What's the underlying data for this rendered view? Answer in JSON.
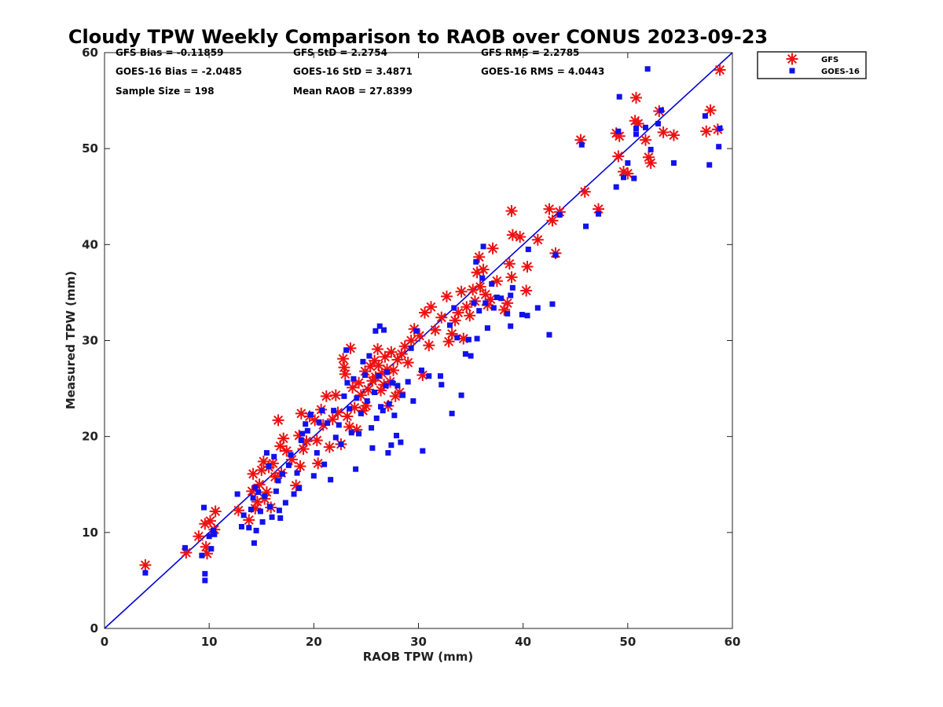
{
  "chart_data": {
    "type": "scatter",
    "title": "Cloudy TPW Weekly Comparison to RAOB over CONUS 2023-09-23",
    "xlabel": "RAOB TPW (mm)",
    "ylabel": "Measured TPW (mm)",
    "xlim": [
      0,
      60
    ],
    "ylim": [
      0,
      60
    ],
    "xticks": [
      "0",
      "10",
      "20",
      "30",
      "40",
      "50",
      "60"
    ],
    "yticks": [
      "0",
      "10",
      "20",
      "30",
      "40",
      "50",
      "60"
    ],
    "grid": false,
    "legend_position": "outside-top-right",
    "reference_line": {
      "x": [
        0,
        60
      ],
      "y": [
        0,
        60
      ],
      "color": "#0000e0"
    },
    "stats": [
      [
        "GFS Bias = -0.11859",
        "GFS StD = 2.2754",
        "GFS RMS = 2.2785"
      ],
      [
        "GOES-16 Bias = -2.0485",
        "GOES-16 StD = 3.4871",
        "GOES-16 RMS = 4.0443"
      ],
      [
        "Sample Size = 198",
        "Mean RAOB = 27.8399",
        ""
      ]
    ],
    "series": [
      {
        "name": "GFS",
        "marker": "asterisk",
        "color": "#ee1111",
        "points": [
          [
            3.9,
            6.6
          ],
          [
            7.8,
            7.9
          ],
          [
            9.0,
            9.6
          ],
          [
            9.6,
            10.9
          ],
          [
            9.7,
            8.5
          ],
          [
            9.8,
            7.8
          ],
          [
            10.1,
            11.2
          ],
          [
            10.5,
            10.3
          ],
          [
            10.6,
            12.2
          ],
          [
            12.8,
            12.3
          ],
          [
            13.8,
            11.3
          ],
          [
            14.1,
            14.3
          ],
          [
            14.2,
            16.1
          ],
          [
            14.4,
            12.5
          ],
          [
            14.6,
            13.2
          ],
          [
            14.8,
            15.0
          ],
          [
            15.0,
            16.5
          ],
          [
            15.2,
            17.4
          ],
          [
            15.3,
            13.5
          ],
          [
            15.5,
            14.2
          ],
          [
            15.7,
            16.8
          ],
          [
            15.9,
            12.6
          ],
          [
            16.1,
            17.2
          ],
          [
            16.3,
            15.8
          ],
          [
            16.6,
            21.7
          ],
          [
            16.8,
            19.0
          ],
          [
            16.9,
            16.2
          ],
          [
            17.1,
            19.8
          ],
          [
            17.4,
            18.5
          ],
          [
            17.9,
            17.6
          ],
          [
            18.3,
            14.9
          ],
          [
            18.6,
            20.1
          ],
          [
            18.7,
            16.9
          ],
          [
            18.8,
            22.4
          ],
          [
            19.0,
            18.7
          ],
          [
            19.3,
            19.5
          ],
          [
            19.6,
            22.1
          ],
          [
            20.1,
            21.7
          ],
          [
            20.3,
            19.6
          ],
          [
            20.4,
            17.2
          ],
          [
            20.7,
            22.8
          ],
          [
            20.9,
            21.2
          ],
          [
            21.2,
            24.2
          ],
          [
            21.5,
            18.9
          ],
          [
            21.8,
            21.8
          ],
          [
            22.1,
            24.3
          ],
          [
            22.3,
            22.5
          ],
          [
            22.6,
            19.2
          ],
          [
            22.8,
            28.1
          ],
          [
            22.9,
            27.2
          ],
          [
            23.0,
            26.5
          ],
          [
            23.2,
            22.1
          ],
          [
            23.4,
            21.0
          ],
          [
            23.5,
            29.2
          ],
          [
            23.7,
            25.1
          ],
          [
            23.9,
            23.0
          ],
          [
            24.1,
            20.7
          ],
          [
            24.3,
            25.6
          ],
          [
            24.5,
            24.3
          ],
          [
            24.7,
            22.7
          ],
          [
            24.9,
            26.8
          ],
          [
            25.0,
            23.2
          ],
          [
            25.2,
            24.9
          ],
          [
            25.4,
            27.3
          ],
          [
            25.6,
            25.8
          ],
          [
            25.8,
            27.9
          ],
          [
            25.9,
            26.2
          ],
          [
            26.1,
            29.1
          ],
          [
            26.2,
            27.4
          ],
          [
            26.4,
            24.8
          ],
          [
            26.5,
            26.6
          ],
          [
            26.7,
            25.4
          ],
          [
            26.8,
            28.3
          ],
          [
            27.0,
            27.0
          ],
          [
            27.1,
            23.2
          ],
          [
            27.3,
            25.7
          ],
          [
            27.4,
            28.8
          ],
          [
            27.6,
            26.9
          ],
          [
            27.8,
            24.2
          ],
          [
            28.0,
            28.0
          ],
          [
            28.2,
            24.6
          ],
          [
            28.4,
            28.6
          ],
          [
            28.7,
            29.4
          ],
          [
            29.0,
            27.7
          ],
          [
            29.3,
            30.0
          ],
          [
            29.6,
            31.2
          ],
          [
            30.1,
            30.5
          ],
          [
            30.4,
            26.4
          ],
          [
            30.6,
            32.9
          ],
          [
            31.0,
            29.5
          ],
          [
            31.2,
            33.5
          ],
          [
            31.6,
            31.1
          ],
          [
            32.2,
            32.4
          ],
          [
            32.7,
            34.6
          ],
          [
            32.9,
            29.9
          ],
          [
            33.2,
            30.7
          ],
          [
            33.5,
            32.1
          ],
          [
            33.8,
            32.9
          ],
          [
            34.1,
            35.1
          ],
          [
            34.3,
            30.2
          ],
          [
            34.6,
            33.5
          ],
          [
            34.9,
            32.6
          ],
          [
            35.2,
            35.3
          ],
          [
            35.4,
            34.1
          ],
          [
            35.6,
            37.1
          ],
          [
            35.8,
            38.7
          ],
          [
            35.9,
            35.6
          ],
          [
            36.2,
            37.4
          ],
          [
            36.4,
            34.8
          ],
          [
            36.6,
            33.7
          ],
          [
            36.9,
            34.3
          ],
          [
            37.1,
            39.6
          ],
          [
            37.5,
            36.2
          ],
          [
            38.2,
            33.2
          ],
          [
            38.5,
            33.9
          ],
          [
            38.7,
            38.0
          ],
          [
            38.9,
            36.6
          ],
          [
            38.9,
            43.5
          ],
          [
            39.0,
            41.0
          ],
          [
            39.7,
            40.8
          ],
          [
            40.3,
            35.2
          ],
          [
            40.4,
            37.7
          ],
          [
            41.4,
            40.5
          ],
          [
            42.5,
            43.7
          ],
          [
            42.8,
            42.5
          ],
          [
            43.1,
            39.1
          ],
          [
            43.5,
            43.4
          ],
          [
            45.5,
            50.9
          ],
          [
            45.9,
            45.5
          ],
          [
            47.2,
            43.7
          ],
          [
            48.9,
            51.6
          ],
          [
            49.1,
            49.2
          ],
          [
            49.2,
            51.3
          ],
          [
            49.6,
            47.6
          ],
          [
            50.0,
            47.4
          ],
          [
            50.7,
            52.9
          ],
          [
            50.8,
            55.3
          ],
          [
            51.0,
            52.6
          ],
          [
            51.7,
            50.9
          ],
          [
            52.0,
            49.1
          ],
          [
            52.2,
            48.5
          ],
          [
            53.0,
            53.9
          ],
          [
            53.4,
            51.7
          ],
          [
            54.4,
            51.4
          ],
          [
            57.5,
            51.8
          ],
          [
            57.9,
            54.0
          ],
          [
            58.6,
            52.0
          ],
          [
            58.8,
            58.2
          ]
        ]
      },
      {
        "name": "GOES-16",
        "marker": "square",
        "color": "#1111ee",
        "points": [
          [
            3.9,
            5.8
          ],
          [
            7.7,
            8.4
          ],
          [
            9.3,
            7.6
          ],
          [
            9.5,
            12.6
          ],
          [
            9.6,
            5.7
          ],
          [
            9.6,
            5.0
          ],
          [
            10.0,
            9.6
          ],
          [
            10.2,
            8.3
          ],
          [
            10.4,
            10.2
          ],
          [
            10.5,
            9.8
          ],
          [
            12.7,
            14.0
          ],
          [
            13.1,
            10.6
          ],
          [
            13.3,
            11.8
          ],
          [
            13.8,
            10.5
          ],
          [
            14.0,
            12.4
          ],
          [
            14.2,
            13.6
          ],
          [
            14.3,
            8.9
          ],
          [
            14.4,
            14.7
          ],
          [
            14.5,
            10.2
          ],
          [
            14.7,
            14.2
          ],
          [
            14.9,
            12.2
          ],
          [
            15.1,
            11.1
          ],
          [
            15.3,
            13.8
          ],
          [
            15.5,
            18.3
          ],
          [
            15.7,
            16.9
          ],
          [
            15.8,
            12.7
          ],
          [
            16.0,
            11.6
          ],
          [
            16.2,
            17.9
          ],
          [
            16.4,
            14.3
          ],
          [
            16.6,
            15.4
          ],
          [
            16.7,
            12.3
          ],
          [
            16.8,
            11.5
          ],
          [
            17.0,
            16.1
          ],
          [
            17.3,
            13.1
          ],
          [
            17.6,
            17.0
          ],
          [
            17.8,
            18.1
          ],
          [
            18.1,
            14.0
          ],
          [
            18.4,
            16.2
          ],
          [
            18.6,
            14.6
          ],
          [
            18.8,
            19.6
          ],
          [
            18.9,
            20.3
          ],
          [
            19.2,
            21.3
          ],
          [
            19.4,
            20.6
          ],
          [
            19.7,
            22.3
          ],
          [
            20.0,
            15.9
          ],
          [
            20.3,
            18.3
          ],
          [
            20.5,
            21.5
          ],
          [
            20.8,
            22.7
          ],
          [
            21.0,
            17.1
          ],
          [
            21.3,
            21.4
          ],
          [
            21.6,
            15.5
          ],
          [
            21.9,
            22.7
          ],
          [
            22.1,
            19.9
          ],
          [
            22.4,
            21.2
          ],
          [
            22.6,
            19.2
          ],
          [
            22.9,
            24.2
          ],
          [
            23.1,
            29.0
          ],
          [
            23.2,
            25.6
          ],
          [
            23.4,
            22.9
          ],
          [
            23.6,
            20.4
          ],
          [
            23.8,
            26.0
          ],
          [
            24.0,
            16.6
          ],
          [
            24.1,
            24.0
          ],
          [
            24.3,
            20.3
          ],
          [
            24.5,
            22.4
          ],
          [
            24.7,
            27.8
          ],
          [
            24.9,
            26.4
          ],
          [
            25.1,
            23.7
          ],
          [
            25.3,
            28.4
          ],
          [
            25.5,
            20.9
          ],
          [
            25.6,
            18.8
          ],
          [
            25.8,
            24.6
          ],
          [
            25.9,
            31.0
          ],
          [
            26.0,
            21.9
          ],
          [
            26.2,
            26.3
          ],
          [
            26.3,
            31.5
          ],
          [
            26.4,
            23.1
          ],
          [
            26.6,
            22.7
          ],
          [
            26.7,
            31.1
          ],
          [
            26.9,
            25.3
          ],
          [
            27.0,
            26.7
          ],
          [
            27.1,
            18.3
          ],
          [
            27.2,
            23.4
          ],
          [
            27.4,
            19.1
          ],
          [
            27.5,
            25.6
          ],
          [
            27.7,
            22.2
          ],
          [
            27.9,
            20.1
          ],
          [
            28.0,
            25.3
          ],
          [
            28.3,
            19.4
          ],
          [
            28.5,
            24.3
          ],
          [
            29.0,
            25.7
          ],
          [
            29.3,
            29.2
          ],
          [
            29.5,
            23.7
          ],
          [
            29.8,
            31.0
          ],
          [
            30.3,
            26.9
          ],
          [
            30.4,
            18.5
          ],
          [
            31.0,
            26.3
          ],
          [
            32.1,
            26.3
          ],
          [
            32.2,
            25.4
          ],
          [
            33.0,
            31.6
          ],
          [
            33.2,
            22.4
          ],
          [
            33.4,
            33.4
          ],
          [
            33.7,
            30.3
          ],
          [
            34.1,
            24.3
          ],
          [
            34.5,
            28.6
          ],
          [
            34.8,
            30.1
          ],
          [
            35.0,
            28.4
          ],
          [
            35.3,
            33.9
          ],
          [
            35.5,
            38.2
          ],
          [
            35.6,
            30.2
          ],
          [
            35.8,
            33.1
          ],
          [
            36.1,
            36.5
          ],
          [
            36.2,
            39.8
          ],
          [
            36.4,
            33.9
          ],
          [
            36.6,
            31.3
          ],
          [
            37.0,
            35.9
          ],
          [
            37.2,
            33.4
          ],
          [
            37.5,
            34.5
          ],
          [
            37.9,
            34.4
          ],
          [
            38.5,
            32.8
          ],
          [
            38.8,
            34.7
          ],
          [
            38.8,
            31.5
          ],
          [
            39.0,
            35.5
          ],
          [
            39.9,
            32.7
          ],
          [
            40.4,
            32.6
          ],
          [
            40.5,
            39.5
          ],
          [
            41.4,
            33.4
          ],
          [
            42.5,
            30.6
          ],
          [
            42.8,
            33.8
          ],
          [
            43.1,
            38.9
          ],
          [
            43.5,
            43.1
          ],
          [
            45.6,
            50.4
          ],
          [
            46.0,
            41.9
          ],
          [
            47.2,
            43.2
          ],
          [
            48.9,
            46.0
          ],
          [
            49.1,
            51.8
          ],
          [
            49.2,
            55.4
          ],
          [
            49.6,
            47.0
          ],
          [
            50.0,
            48.5
          ],
          [
            50.6,
            46.9
          ],
          [
            50.8,
            51.5
          ],
          [
            50.8,
            52.1
          ],
          [
            51.7,
            52.2
          ],
          [
            51.9,
            58.3
          ],
          [
            52.2,
            49.9
          ],
          [
            52.9,
            52.6
          ],
          [
            53.2,
            54.0
          ],
          [
            54.4,
            48.5
          ],
          [
            57.4,
            53.4
          ],
          [
            57.8,
            48.3
          ],
          [
            58.7,
            50.2
          ],
          [
            58.8,
            52.1
          ]
        ]
      }
    ]
  }
}
